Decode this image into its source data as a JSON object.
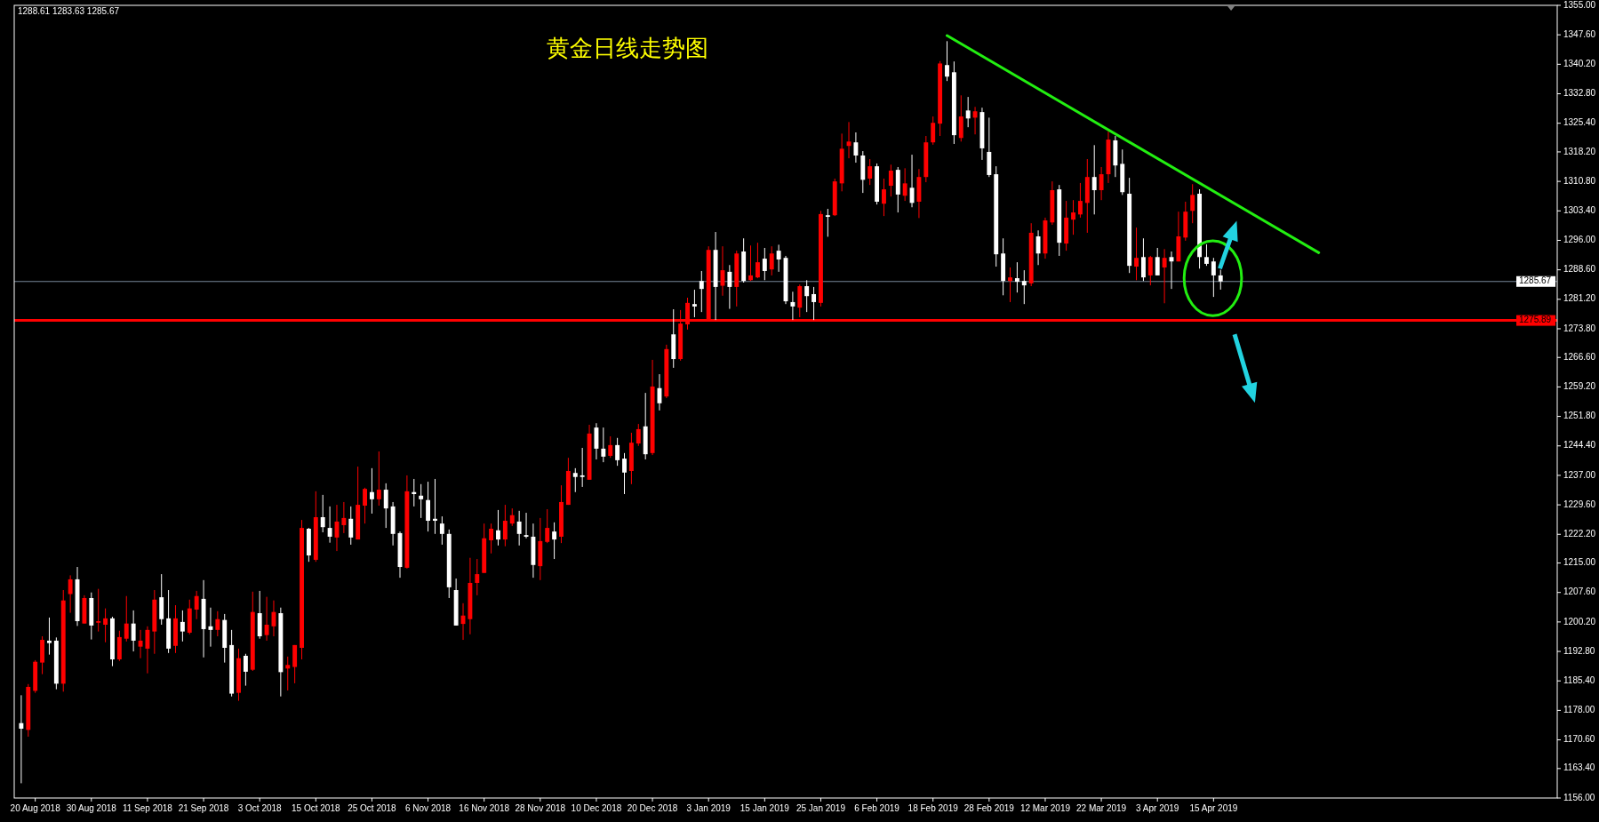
{
  "chart_data": {
    "type": "candlestick",
    "title": "黄金日线走势图",
    "annotations": [
      "1288.61 1283.63 1285.67"
    ],
    "categories": [
      null,
      null,
      "20 Aug 2018",
      null,
      null,
      null,
      null,
      null,
      null,
      null,
      "30 Aug 2018",
      null,
      null,
      null,
      null,
      null,
      null,
      null,
      "11 Sep 2018",
      null,
      null,
      null,
      null,
      null,
      null,
      null,
      "21 Sep 2018",
      null,
      null,
      null,
      null,
      null,
      null,
      null,
      "3 Oct 2018",
      null,
      null,
      null,
      null,
      null,
      null,
      null,
      "15 Oct 2018",
      null,
      null,
      null,
      null,
      null,
      null,
      null,
      "25 Oct 2018",
      null,
      null,
      null,
      null,
      null,
      null,
      null,
      "6 Nov 2018",
      null,
      null,
      null,
      null,
      null,
      null,
      null,
      "16 Nov 2018",
      null,
      null,
      null,
      null,
      null,
      null,
      null,
      "28 Nov 2018",
      null,
      null,
      null,
      null,
      null,
      null,
      null,
      "10 Dec 2018",
      null,
      null,
      null,
      null,
      null,
      null,
      null,
      "20 Dec 2018",
      null,
      null,
      null,
      null,
      null,
      null,
      null,
      "3 Jan 2019",
      null,
      null,
      null,
      null,
      null,
      null,
      null,
      "15 Jan 2019",
      null,
      null,
      null,
      null,
      null,
      null,
      null,
      "25 Jan 2019",
      null,
      null,
      null,
      null,
      null,
      null,
      null,
      "6 Feb 2019",
      null,
      null,
      null,
      null,
      null,
      null,
      null,
      "18 Feb 2019",
      null,
      null,
      null,
      null,
      null,
      null,
      null,
      "28 Feb 2019",
      null,
      null,
      null,
      null,
      null,
      null,
      null,
      "12 Mar 2019",
      null,
      null,
      null,
      null,
      null,
      null,
      null,
      "22 Mar 2019",
      null,
      null,
      null,
      null,
      null,
      null,
      null,
      "3 Apr 2019",
      null,
      null,
      null,
      null,
      null,
      null,
      null,
      "15 Apr 2019",
      null,
      null,
      null,
      null,
      null,
      null,
      null,
      null,
      null,
      null,
      null,
      null,
      null,
      null,
      null,
      null,
      null,
      null,
      null,
      null,
      null,
      null,
      null,
      null,
      null,
      null,
      null,
      null,
      null,
      null,
      null,
      null,
      null,
      null,
      null,
      null,
      null,
      null,
      null,
      null,
      null,
      null,
      null,
      null,
      null,
      null,
      null,
      null
    ],
    "ohlc": [
      [
        1174.8,
        1181.8,
        1159.7,
        1173.4
      ],
      [
        1173.1,
        1184.6,
        1171.4,
        1183.9
      ],
      [
        1182.9,
        1190.6,
        1182.4,
        1190.2
      ],
      [
        1190.0,
        1196.6,
        1187.1,
        1195.7
      ],
      [
        1195.5,
        1201.3,
        1192.0,
        1194.9
      ],
      [
        1195.5,
        1196.3,
        1183.3,
        1184.7
      ],
      [
        1184.7,
        1208.2,
        1182.7,
        1205.6
      ],
      [
        1207.2,
        1211.9,
        1202.5,
        1210.9
      ],
      [
        1210.9,
        1214.0,
        1199.2,
        1200.4
      ],
      [
        1199.8,
        1206.9,
        1199.8,
        1206.2
      ],
      [
        1206.2,
        1207.6,
        1195.8,
        1199.3
      ],
      [
        1200.0,
        1208.5,
        1197.8,
        1200.4
      ],
      [
        1199.5,
        1203.6,
        1195.1,
        1201.1
      ],
      [
        1201.1,
        1201.5,
        1189.1,
        1190.8
      ],
      [
        1190.8,
        1198.0,
        1190.4,
        1196.4
      ],
      [
        1196.0,
        1206.7,
        1195.3,
        1199.8
      ],
      [
        1199.8,
        1203.1,
        1192.8,
        1195.5
      ],
      [
        1194.0,
        1198.2,
        1191.1,
        1195.5
      ],
      [
        1193.5,
        1199.1,
        1187.3,
        1198.2
      ],
      [
        1197.8,
        1208.2,
        1192.2,
        1205.8
      ],
      [
        1206.4,
        1212.2,
        1199.5,
        1200.9
      ],
      [
        1201.1,
        1208.2,
        1192.4,
        1193.5
      ],
      [
        1194.2,
        1204.4,
        1192.4,
        1201.1
      ],
      [
        1200.2,
        1203.1,
        1195.3,
        1197.8
      ],
      [
        1197.5,
        1205.8,
        1197.1,
        1203.6
      ],
      [
        1203.3,
        1208.0,
        1200.9,
        1206.7
      ],
      [
        1206.0,
        1210.7,
        1191.3,
        1198.4
      ],
      [
        1199.1,
        1203.8,
        1194.0,
        1198.2
      ],
      [
        1198.2,
        1202.9,
        1196.6,
        1200.9
      ],
      [
        1200.7,
        1202.2,
        1190.0,
        1193.7
      ],
      [
        1194.4,
        1198.2,
        1181.5,
        1182.2
      ],
      [
        1182.4,
        1193.5,
        1180.4,
        1191.1
      ],
      [
        1191.7,
        1192.2,
        1184.2,
        1187.7
      ],
      [
        1188.2,
        1207.8,
        1187.9,
        1202.7
      ],
      [
        1202.4,
        1208.0,
        1196.0,
        1196.6
      ],
      [
        1196.9,
        1206.5,
        1195.5,
        1199.5
      ],
      [
        1199.1,
        1205.6,
        1196.6,
        1202.7
      ],
      [
        1202.4,
        1203.8,
        1181.5,
        1187.6
      ],
      [
        1188.5,
        1191.5,
        1183.0,
        1189.4
      ],
      [
        1188.9,
        1194.4,
        1184.8,
        1194.4
      ],
      [
        1193.7,
        1225.8,
        1190.8,
        1223.8
      ],
      [
        1223.6,
        1223.8,
        1215.3,
        1216.9
      ],
      [
        1215.8,
        1233.0,
        1215.3,
        1226.5
      ],
      [
        1226.5,
        1232.1,
        1222.7,
        1224.0
      ],
      [
        1223.8,
        1229.2,
        1220.1,
        1221.6
      ],
      [
        1221.4,
        1229.6,
        1218.0,
        1225.4
      ],
      [
        1224.5,
        1230.3,
        1222.5,
        1226.3
      ],
      [
        1226.1,
        1229.2,
        1219.6,
        1221.4
      ],
      [
        1220.9,
        1239.2,
        1220.9,
        1229.6
      ],
      [
        1229.4,
        1233.9,
        1224.9,
        1233.6
      ],
      [
        1232.8,
        1238.8,
        1227.4,
        1231.0
      ],
      [
        1231.0,
        1243.0,
        1229.4,
        1233.4
      ],
      [
        1233.4,
        1235.0,
        1223.8,
        1228.7
      ],
      [
        1229.2,
        1230.3,
        1219.4,
        1222.3
      ],
      [
        1222.5,
        1222.9,
        1211.3,
        1214.0
      ],
      [
        1213.8,
        1237.0,
        1213.6,
        1233.0
      ],
      [
        1232.8,
        1236.1,
        1229.2,
        1232.3
      ],
      [
        1231.9,
        1234.8,
        1226.3,
        1231.0
      ],
      [
        1230.8,
        1235.4,
        1222.9,
        1225.6
      ],
      [
        1226.1,
        1236.1,
        1222.3,
        1225.6
      ],
      [
        1224.9,
        1226.7,
        1219.6,
        1222.3
      ],
      [
        1222.3,
        1223.4,
        1206.2,
        1208.9
      ],
      [
        1208.2,
        1211.1,
        1199.3,
        1199.3
      ],
      [
        1199.7,
        1204.9,
        1195.7,
        1201.8
      ],
      [
        1200.9,
        1216.3,
        1197.1,
        1210.0
      ],
      [
        1210.0,
        1216.0,
        1206.9,
        1212.2
      ],
      [
        1212.5,
        1224.9,
        1212.5,
        1221.2
      ],
      [
        1220.7,
        1224.9,
        1217.4,
        1223.6
      ],
      [
        1223.2,
        1228.3,
        1219.4,
        1220.9
      ],
      [
        1220.9,
        1229.6,
        1219.2,
        1225.6
      ],
      [
        1224.9,
        1228.7,
        1224.3,
        1227.0
      ],
      [
        1225.4,
        1228.1,
        1219.4,
        1222.3
      ],
      [
        1222.0,
        1227.6,
        1221.2,
        1221.6
      ],
      [
        1221.6,
        1224.9,
        1211.3,
        1214.5
      ],
      [
        1214.2,
        1226.3,
        1210.7,
        1220.5
      ],
      [
        1220.3,
        1228.5,
        1220.0,
        1223.8
      ],
      [
        1222.9,
        1225.2,
        1216.0,
        1220.9
      ],
      [
        1221.6,
        1234.5,
        1220.0,
        1230.3
      ],
      [
        1229.6,
        1241.4,
        1229.6,
        1238.1
      ],
      [
        1237.6,
        1238.8,
        1232.8,
        1236.6
      ],
      [
        1237.0,
        1243.9,
        1234.1,
        1236.6
      ],
      [
        1235.9,
        1249.7,
        1235.9,
        1247.5
      ],
      [
        1249.0,
        1250.1,
        1241.0,
        1243.7
      ],
      [
        1243.7,
        1249.0,
        1240.3,
        1241.7
      ],
      [
        1241.9,
        1246.8,
        1241.4,
        1244.6
      ],
      [
        1244.6,
        1246.4,
        1239.4,
        1240.8
      ],
      [
        1241.2,
        1242.6,
        1232.3,
        1237.7
      ],
      [
        1238.1,
        1247.7,
        1234.8,
        1245.2
      ],
      [
        1245.0,
        1249.9,
        1244.4,
        1248.6
      ],
      [
        1249.3,
        1257.7,
        1241.0,
        1242.3
      ],
      [
        1242.6,
        1266.0,
        1242.1,
        1259.3
      ],
      [
        1258.9,
        1262.4,
        1253.3,
        1255.1
      ],
      [
        1256.8,
        1269.8,
        1256.4,
        1268.7
      ],
      [
        1272.4,
        1278.7,
        1264.0,
        1266.2
      ],
      [
        1266.2,
        1278.5,
        1265.8,
        1275.1
      ],
      [
        1274.9,
        1281.6,
        1273.6,
        1280.3
      ],
      [
        1280.0,
        1283.6,
        1276.7,
        1279.4
      ],
      [
        1285.8,
        1288.3,
        1278.0,
        1283.8
      ],
      [
        1276.2,
        1294.5,
        1276.2,
        1293.6
      ],
      [
        1293.6,
        1298.1,
        1276.0,
        1284.3
      ],
      [
        1284.6,
        1294.5,
        1282.1,
        1288.5
      ],
      [
        1288.1,
        1289.8,
        1278.8,
        1284.3
      ],
      [
        1284.3,
        1293.4,
        1279.4,
        1292.7
      ],
      [
        1293.2,
        1296.5,
        1285.4,
        1285.8
      ],
      [
        1286.0,
        1294.7,
        1285.8,
        1287.2
      ],
      [
        1286.7,
        1295.4,
        1286.5,
        1290.5
      ],
      [
        1291.4,
        1294.1,
        1286.0,
        1288.3
      ],
      [
        1288.7,
        1294.5,
        1287.2,
        1292.7
      ],
      [
        1293.4,
        1294.9,
        1288.1,
        1291.2
      ],
      [
        1291.6,
        1292.1,
        1280.0,
        1280.7
      ],
      [
        1280.5,
        1283.1,
        1276.0,
        1279.4
      ],
      [
        1279.1,
        1284.9,
        1276.7,
        1284.5
      ],
      [
        1284.5,
        1286.0,
        1278.0,
        1282.0
      ],
      [
        1282.5,
        1284.3,
        1276.0,
        1280.5
      ],
      [
        1280.3,
        1303.4,
        1279.4,
        1302.6
      ],
      [
        1302.3,
        1303.9,
        1296.9,
        1301.9
      ],
      [
        1302.3,
        1311.5,
        1302.1,
        1310.8
      ],
      [
        1310.3,
        1322.8,
        1308.3,
        1319.0
      ],
      [
        1319.7,
        1325.7,
        1316.6,
        1320.8
      ],
      [
        1320.6,
        1323.1,
        1315.5,
        1317.3
      ],
      [
        1317.3,
        1318.4,
        1307.9,
        1311.2
      ],
      [
        1311.5,
        1316.4,
        1309.9,
        1314.6
      ],
      [
        1314.6,
        1315.3,
        1305.0,
        1305.7
      ],
      [
        1305.2,
        1311.5,
        1302.1,
        1308.8
      ],
      [
        1309.7,
        1315.0,
        1307.0,
        1313.5
      ],
      [
        1313.7,
        1314.4,
        1303.0,
        1307.5
      ],
      [
        1307.2,
        1314.1,
        1305.9,
        1310.3
      ],
      [
        1309.2,
        1317.5,
        1304.3,
        1305.4
      ],
      [
        1305.7,
        1313.9,
        1301.6,
        1311.9
      ],
      [
        1311.9,
        1322.2,
        1310.6,
        1320.6
      ],
      [
        1320.6,
        1327.1,
        1320.0,
        1325.5
      ],
      [
        1325.3,
        1341.0,
        1322.2,
        1340.4
      ],
      [
        1340.0,
        1346.0,
        1336.0,
        1337.1
      ],
      [
        1338.2,
        1340.9,
        1320.2,
        1322.4
      ],
      [
        1321.7,
        1332.4,
        1320.8,
        1327.1
      ],
      [
        1328.6,
        1332.0,
        1324.4,
        1326.6
      ],
      [
        1326.8,
        1329.5,
        1322.6,
        1328.4
      ],
      [
        1328.2,
        1329.3,
        1316.2,
        1319.1
      ],
      [
        1318.2,
        1326.8,
        1311.9,
        1312.4
      ],
      [
        1312.6,
        1314.6,
        1289.4,
        1292.5
      ],
      [
        1292.7,
        1296.5,
        1282.2,
        1285.8
      ],
      [
        1285.8,
        1289.2,
        1280.5,
        1286.7
      ],
      [
        1286.5,
        1290.5,
        1282.9,
        1285.6
      ],
      [
        1285.8,
        1288.5,
        1280.0,
        1284.7
      ],
      [
        1285.2,
        1300.3,
        1284.5,
        1297.9
      ],
      [
        1297.0,
        1298.5,
        1289.8,
        1292.7
      ],
      [
        1292.7,
        1301.7,
        1291.4,
        1301.0
      ],
      [
        1300.5,
        1310.8,
        1299.9,
        1308.6
      ],
      [
        1308.8,
        1309.9,
        1292.1,
        1295.4
      ],
      [
        1295.2,
        1305.9,
        1293.4,
        1301.7
      ],
      [
        1301.2,
        1306.1,
        1297.4,
        1303.0
      ],
      [
        1302.5,
        1310.4,
        1301.7,
        1305.9
      ],
      [
        1305.4,
        1316.4,
        1297.9,
        1311.9
      ],
      [
        1311.9,
        1319.9,
        1302.5,
        1308.6
      ],
      [
        1308.6,
        1314.4,
        1306.1,
        1312.6
      ],
      [
        1312.6,
        1323.3,
        1310.4,
        1321.3
      ],
      [
        1321.1,
        1322.2,
        1311.9,
        1314.8
      ],
      [
        1315.2,
        1318.8,
        1307.4,
        1308.1
      ],
      [
        1307.7,
        1311.7,
        1287.8,
        1289.6
      ],
      [
        1289.4,
        1299.2,
        1286.0,
        1291.6
      ],
      [
        1291.8,
        1296.5,
        1285.8,
        1286.7
      ],
      [
        1287.2,
        1292.1,
        1284.7,
        1291.8
      ],
      [
        1291.8,
        1294.1,
        1287.2,
        1287.2
      ],
      [
        1289.2,
        1293.8,
        1280.2,
        1291.6
      ],
      [
        1291.8,
        1293.2,
        1283.8,
        1290.7
      ],
      [
        1290.7,
        1303.2,
        1290.7,
        1297.0
      ],
      [
        1296.7,
        1305.7,
        1295.9,
        1303.2
      ],
      [
        1303.4,
        1310.1,
        1300.3,
        1307.4
      ],
      [
        1307.7,
        1308.8,
        1288.9,
        1291.8
      ],
      [
        1291.8,
        1295.0,
        1289.6,
        1290.1
      ],
      [
        1290.7,
        1291.6,
        1281.8,
        1287.2
      ],
      [
        1287.2,
        1288.61,
        1283.63,
        1285.67
      ],
      null,
      null,
      null,
      null,
      null,
      null,
      null,
      null,
      null,
      null,
      null,
      null,
      null,
      null,
      null,
      null,
      null,
      null,
      null,
      null,
      null,
      null,
      null,
      null,
      null,
      null,
      null,
      null,
      null,
      null,
      null,
      null,
      null,
      null,
      null,
      null,
      null,
      null,
      null,
      null,
      null,
      null,
      null,
      null,
      null,
      null,
      null
    ],
    "colors": [
      "#ffffff",
      "#ff0000",
      "#ff0000",
      "#ff0000",
      "#ffffff",
      "#ffffff",
      "#ff0000",
      "#ff0000",
      "#ffffff",
      "#ff0000",
      "#ffffff",
      "#ff0000",
      "#ff0000",
      "#ffffff",
      "#ff0000",
      "#ff0000",
      "#ffffff",
      "#ff0000",
      "#ff0000",
      "#ff0000",
      "#ffffff",
      "#ffffff",
      "#ff0000",
      "#ffffff",
      "#ff0000",
      "#ff0000",
      "#ffffff",
      "#ffffff",
      "#ff0000",
      "#ffffff",
      "#ffffff",
      "#ff0000",
      "#ffffff",
      "#ff0000",
      "#ffffff",
      "#ff0000",
      "#ff0000",
      "#ffffff",
      "#ff0000",
      "#ff0000",
      "#ff0000",
      "#ffffff",
      "#ff0000",
      "#ffffff",
      "#ffffff",
      "#ff0000",
      "#ff0000",
      "#ffffff",
      "#ff0000",
      "#ff0000",
      "#ffffff",
      "#ff0000",
      "#ffffff",
      "#ffffff",
      "#ffffff",
      "#ff0000",
      "#ffffff",
      "#ffffff",
      "#ffffff",
      "#ffffff",
      "#ffffff",
      "#ffffff",
      "#ffffff",
      "#ff0000",
      "#ff0000",
      "#ff0000",
      "#ff0000",
      "#ff0000",
      "#ffffff",
      "#ff0000",
      "#ff0000",
      "#ffffff",
      "#ffffff",
      "#ffffff",
      "#ff0000",
      "#ff0000",
      "#ffffff",
      "#ff0000",
      "#ff0000",
      "#ffffff",
      "#ffffff",
      "#ff0000",
      "#ffffff",
      "#ffffff",
      "#ff0000",
      "#ffffff",
      "#ffffff",
      "#ff0000",
      "#ff0000",
      "#ffffff",
      "#ff0000",
      "#ffffff",
      "#ff0000",
      "#ffffff",
      "#ff0000",
      "#ff0000",
      "#ffffff",
      "#ffffff",
      "#ff0000",
      "#ffffff",
      "#ff0000",
      "#ffffff",
      "#ff0000",
      "#ffffff",
      "#ff0000",
      "#ff0000",
      "#ffffff",
      "#ff0000",
      "#ffffff",
      "#ffffff",
      "#ffffff",
      "#ff0000",
      "#ffffff",
      "#ffffff",
      "#ff0000",
      "#ffffff",
      "#ff0000",
      "#ff0000",
      "#ff0000",
      "#ffffff",
      "#ffffff",
      "#ff0000",
      "#ffffff",
      "#ff0000",
      "#ff0000",
      "#ffffff",
      "#ff0000",
      "#ffffff",
      "#ff0000",
      "#ff0000",
      "#ff0000",
      "#ff0000",
      "#ffffff",
      "#ffffff",
      "#ff0000",
      "#ffffff",
      "#ff0000",
      "#ffffff",
      "#ffffff",
      "#ffffff",
      "#ffffff",
      "#ff0000",
      "#ffffff",
      "#ffffff",
      "#ff0000",
      "#ffffff",
      "#ff0000",
      "#ff0000",
      "#ffffff",
      "#ff0000",
      "#ff0000",
      "#ff0000",
      "#ff0000",
      "#ffffff",
      "#ff0000",
      "#ff0000",
      "#ffffff",
      "#ffffff",
      "#ffffff",
      "#ff0000",
      "#ffffff",
      "#ff0000",
      "#ffffff",
      "#ff0000",
      "#ffffff",
      "#ff0000",
      "#ff0000",
      "#ff0000",
      "#ffffff",
      "#ffffff",
      "#ffffff",
      "#ffffff",
      null,
      null,
      null,
      null,
      null,
      null,
      null,
      null,
      null,
      null,
      null,
      null,
      null,
      null,
      null,
      null,
      null,
      null,
      null,
      null,
      null,
      null,
      null,
      null,
      null,
      null,
      null,
      null,
      null,
      null,
      null,
      null,
      null,
      null,
      null,
      null,
      null,
      null,
      null,
      null,
      null,
      null,
      null,
      null,
      null,
      null,
      null
    ],
    "series": [
      {
        "type": "line",
        "color": "#22ee11",
        "values": [
          null,
          null,
          null,
          null,
          null,
          null,
          null,
          null,
          null,
          null,
          null,
          null,
          null,
          null,
          null,
          null,
          null,
          null,
          null,
          null,
          null,
          null,
          null,
          null,
          null,
          null,
          null,
          null,
          null,
          null,
          null,
          null,
          null,
          null,
          null,
          null,
          null,
          null,
          null,
          null,
          null,
          null,
          null,
          null,
          null,
          null,
          null,
          null,
          null,
          null,
          null,
          null,
          null,
          null,
          null,
          null,
          null,
          null,
          null,
          null,
          null,
          null,
          null,
          null,
          null,
          null,
          null,
          null,
          null,
          null,
          null,
          null,
          null,
          null,
          null,
          null,
          null,
          null,
          null,
          null,
          null,
          null,
          null,
          null,
          null,
          null,
          null,
          null,
          null,
          null,
          null,
          null,
          null,
          null,
          null,
          null,
          null,
          null,
          null,
          null,
          null,
          null,
          null,
          null,
          null,
          null,
          null,
          null,
          null,
          null,
          null,
          null,
          null,
          null,
          null,
          null,
          null,
          null,
          null,
          null,
          null,
          null,
          null,
          null,
          null,
          null,
          null,
          null,
          null,
          null,
          null,
          null,
          1347.4,
          null,
          null,
          null,
          null,
          null,
          null,
          null,
          null,
          null,
          null,
          null,
          null,
          null,
          null,
          null,
          null,
          null,
          null,
          null,
          null,
          null,
          null,
          null,
          null,
          null,
          null,
          null,
          null,
          null,
          null,
          null,
          null,
          null,
          null,
          null,
          null,
          null,
          null,
          null,
          null,
          null,
          null,
          null,
          null,
          null,
          null,
          null,
          null,
          null,
          null,
          null,
          null,
          1292.9,
          null,
          null,
          null,
          null,
          null,
          null,
          null,
          null,
          null,
          null,
          null,
          null,
          null,
          null,
          null,
          null,
          null,
          null,
          null,
          null,
          null,
          null,
          null,
          null,
          null,
          null,
          null,
          null,
          null,
          null,
          null,
          null,
          null
        ]
      }
    ],
    "ref_lines": [
      {
        "axis": "y",
        "value": 1285.67,
        "label": "1285.67",
        "color": "#778899"
      },
      {
        "axis": "y",
        "value": 1275.89,
        "label": "1275.89",
        "color": "#ff0000"
      }
    ],
    "ylim": [
      1156,
      1355
    ],
    "yticks": [
      {
        "value": 1156,
        "label": "1156.00"
      },
      {
        "value": 1163.4,
        "label": "1163.40"
      },
      {
        "value": 1170.6,
        "label": "1170.60"
      },
      {
        "value": 1178,
        "label": "1178.00"
      },
      {
        "value": 1185.4,
        "label": "1185.40"
      },
      {
        "value": 1192.8,
        "label": "1192.80"
      },
      {
        "value": 1200.2,
        "label": "1200.20"
      },
      {
        "value": 1207.6,
        "label": "1207.60"
      },
      {
        "value": 1215,
        "label": "1215.00"
      },
      {
        "value": 1222.2,
        "label": "1222.20"
      },
      {
        "value": 1229.6,
        "label": "1229.60"
      },
      {
        "value": 1237,
        "label": "1237.00"
      },
      {
        "value": 1244.4,
        "label": "1244.40"
      },
      {
        "value": 1251.8,
        "label": "1251.80"
      },
      {
        "value": 1259.2,
        "label": "1259.20"
      },
      {
        "value": 1266.6,
        "label": "1266.60"
      },
      {
        "value": 1273.8,
        "label": "1273.80"
      },
      {
        "value": 1281.2,
        "label": "1281.20"
      },
      {
        "value": 1288.6,
        "label": "1288.60"
      },
      {
        "value": 1296,
        "label": "1296.00"
      },
      {
        "value": 1303.4,
        "label": "1303.40"
      },
      {
        "value": 1310.8,
        "label": "1310.80"
      },
      {
        "value": 1318.2,
        "label": "1318.20"
      },
      {
        "value": 1325.4,
        "label": "1325.40"
      },
      {
        "value": 1332.8,
        "label": "1332.80"
      },
      {
        "value": 1340.2,
        "label": "1340.20"
      },
      {
        "value": 1347.6,
        "label": "1347.60"
      },
      {
        "value": 1355,
        "label": "1355.00"
      }
    ]
  }
}
